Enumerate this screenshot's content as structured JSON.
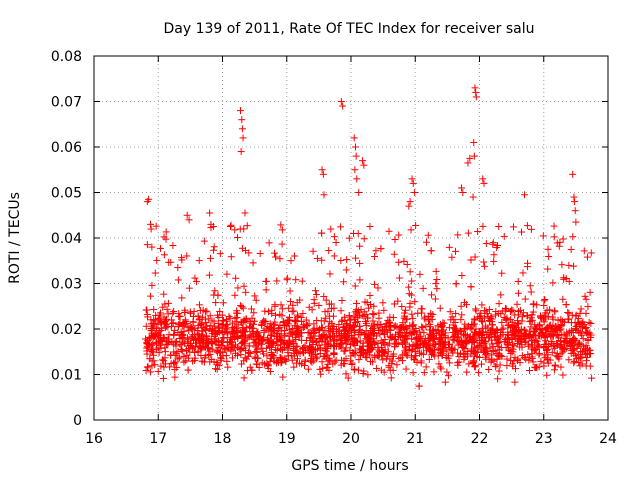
{
  "chart_data": {
    "type": "scatter",
    "title": "Day 139 of 2011, Rate Of TEC Index for receiver salu",
    "xlabel": "GPS time / hours",
    "ylabel": "ROTI / TECUs",
    "xlim": [
      16,
      24
    ],
    "ylim": [
      0,
      0.08
    ],
    "xticks": [
      "16",
      "17",
      "18",
      "19",
      "20",
      "21",
      "22",
      "23",
      "24"
    ],
    "yticks": [
      "0",
      "0.01",
      "0.02",
      "0.03",
      "0.04",
      "0.05",
      "0.06",
      "0.07",
      "0.08"
    ],
    "grid": true,
    "marker": "+",
    "color": "#ff0000",
    "data_start_hour": 16.8,
    "data_end_hour": 23.75,
    "typical_range": [
      0.008,
      0.035
    ],
    "series": [
      {
        "name": "ROTI",
        "points": [
          [
            16.83,
            0.048
          ],
          [
            16.85,
            0.0485
          ],
          [
            16.88,
            0.043
          ],
          [
            16.9,
            0.038
          ],
          [
            17.45,
            0.045
          ],
          [
            17.48,
            0.044
          ],
          [
            17.8,
            0.0455
          ],
          [
            17.82,
            0.043
          ],
          [
            18.28,
            0.068
          ],
          [
            18.3,
            0.066
          ],
          [
            18.31,
            0.064
          ],
          [
            18.32,
            0.062
          ],
          [
            18.29,
            0.059
          ],
          [
            18.35,
            0.0455
          ],
          [
            18.33,
            0.042
          ],
          [
            19.55,
            0.055
          ],
          [
            19.57,
            0.054
          ],
          [
            19.58,
            0.0495
          ],
          [
            19.85,
            0.07
          ],
          [
            19.87,
            0.069
          ],
          [
            20.05,
            0.062
          ],
          [
            20.07,
            0.06
          ],
          [
            20.08,
            0.058
          ],
          [
            20.06,
            0.055
          ],
          [
            20.09,
            0.053
          ],
          [
            20.12,
            0.05
          ],
          [
            20.18,
            0.057
          ],
          [
            20.2,
            0.056
          ],
          [
            20.95,
            0.053
          ],
          [
            20.97,
            0.052
          ],
          [
            20.99,
            0.05
          ],
          [
            20.92,
            0.048
          ],
          [
            20.9,
            0.047
          ],
          [
            21.72,
            0.051
          ],
          [
            21.74,
            0.05
          ],
          [
            21.82,
            0.0565
          ],
          [
            21.85,
            0.0575
          ],
          [
            21.93,
            0.073
          ],
          [
            21.94,
            0.072
          ],
          [
            21.95,
            0.071
          ],
          [
            21.91,
            0.061
          ],
          [
            21.92,
            0.058
          ],
          [
            21.9,
            0.049
          ],
          [
            22.05,
            0.053
          ],
          [
            22.07,
            0.052
          ],
          [
            22.7,
            0.0495
          ],
          [
            23.45,
            0.054
          ],
          [
            23.47,
            0.049
          ],
          [
            23.48,
            0.048
          ],
          [
            23.49,
            0.046
          ],
          [
            23.5,
            0.0435
          ]
        ]
      }
    ]
  }
}
